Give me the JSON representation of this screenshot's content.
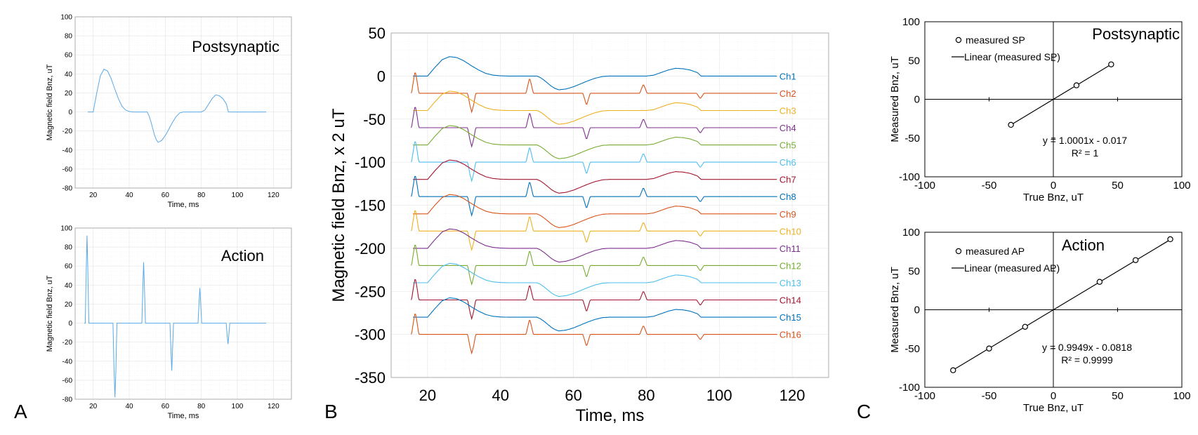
{
  "panel_letters": {
    "a": "A",
    "b": "B",
    "c": "C"
  },
  "chart_data": [
    {
      "id": "A1",
      "type": "line",
      "title": "Postsynaptic",
      "xlabel": "Time, ms",
      "ylabel": "Magnetic field Bnz, uT",
      "xlim": [
        10,
        130
      ],
      "ylim": [
        -80,
        100
      ],
      "xticks": [
        20,
        40,
        60,
        80,
        100,
        120
      ],
      "yticks": [
        -80,
        -60,
        -40,
        -20,
        0,
        20,
        40,
        60,
        80,
        100
      ],
      "grid": true,
      "series": [
        {
          "name": "postsynaptic",
          "color": "#5aa9e6",
          "x": [
            17,
            20,
            22,
            24,
            26,
            28,
            30,
            32,
            34,
            36,
            38,
            40,
            42,
            44,
            46,
            48,
            50,
            51,
            52,
            53,
            54,
            55,
            56,
            57,
            58,
            60,
            62,
            64,
            66,
            68,
            70,
            72,
            74,
            76,
            78,
            80,
            82,
            84,
            86,
            88,
            90,
            92,
            94,
            95,
            100,
            110,
            116
          ],
          "y": [
            0,
            0,
            20,
            38,
            45,
            43,
            35,
            24,
            14,
            6,
            2,
            0.5,
            0,
            0,
            0,
            0,
            0,
            -4,
            -10,
            -17,
            -24,
            -29,
            -32,
            -31,
            -30,
            -25,
            -18,
            -11,
            -5,
            -1,
            0,
            0,
            0,
            0,
            0,
            0,
            2,
            8,
            14,
            18,
            17,
            14,
            8,
            0,
            0,
            0,
            0
          ]
        }
      ]
    },
    {
      "id": "A2",
      "type": "line",
      "title": "Action",
      "xlabel": "Time, ms",
      "ylabel": "Magnetic field Bnz, uT",
      "xlim": [
        10,
        130
      ],
      "ylim": [
        -80,
        100
      ],
      "xticks": [
        20,
        40,
        60,
        80,
        100,
        120
      ],
      "yticks": [
        -80,
        -60,
        -40,
        -20,
        0,
        20,
        40,
        60,
        80,
        100
      ],
      "grid": true,
      "series": [
        {
          "name": "action",
          "color": "#5aa9e6",
          "x": [
            15,
            15.6,
            16.2,
            16.6,
            17.0,
            17.6,
            18.2,
            31.0,
            31.6,
            32.1,
            32.6,
            33.2,
            47.0,
            47.6,
            48.0,
            48.4,
            49.0,
            62.6,
            63.2,
            63.6,
            64.0,
            64.6,
            78.2,
            78.8,
            79.2,
            79.6,
            80.2,
            93.8,
            94.4,
            94.8,
            95.2,
            95.8,
            116
          ],
          "y": [
            0,
            0,
            60,
            92,
            60,
            0,
            0,
            0,
            -50,
            -78,
            -50,
            0,
            0,
            40,
            64,
            40,
            0,
            0,
            -30,
            -50,
            -30,
            0,
            0,
            24,
            37,
            24,
            0,
            0,
            -14,
            -22,
            -14,
            0,
            0
          ]
        }
      ]
    },
    {
      "id": "B",
      "type": "line",
      "title": "",
      "xlabel": "Time, ms",
      "ylabel": "Magnetic field Bnz, x 2 uT",
      "xlim": [
        10,
        130
      ],
      "ylim": [
        -350,
        50
      ],
      "xticks": [
        20,
        40,
        60,
        80,
        100,
        120
      ],
      "yticks": [
        -350,
        -300,
        -250,
        -200,
        -150,
        -100,
        -50,
        0,
        50
      ],
      "grid": true,
      "channel_spacing": -20,
      "series": [
        {
          "name": "Ch1",
          "color": "#0072bd",
          "kind": "postsynaptic",
          "offset": 0
        },
        {
          "name": "Ch2",
          "color": "#d95319",
          "kind": "action",
          "offset": -20
        },
        {
          "name": "Ch3",
          "color": "#edb120",
          "kind": "postsynaptic",
          "offset": -40
        },
        {
          "name": "Ch4",
          "color": "#7e2f8e",
          "kind": "action",
          "offset": -60
        },
        {
          "name": "Ch5",
          "color": "#77ac30",
          "kind": "postsynaptic",
          "offset": -80
        },
        {
          "name": "Ch6",
          "color": "#4dbeee",
          "kind": "action",
          "offset": -100
        },
        {
          "name": "Ch7",
          "color": "#a2142f",
          "kind": "postsynaptic",
          "offset": -120
        },
        {
          "name": "Ch8",
          "color": "#0072bd",
          "kind": "action",
          "offset": -140
        },
        {
          "name": "Ch9",
          "color": "#d95319",
          "kind": "postsynaptic",
          "offset": -160
        },
        {
          "name": "Ch10",
          "color": "#edb120",
          "kind": "action",
          "offset": -180
        },
        {
          "name": "Ch11",
          "color": "#7e2f8e",
          "kind": "postsynaptic",
          "offset": -200
        },
        {
          "name": "Ch12",
          "color": "#77ac30",
          "kind": "action",
          "offset": -220
        },
        {
          "name": "Ch13",
          "color": "#4dbeee",
          "kind": "postsynaptic",
          "offset": -240
        },
        {
          "name": "Ch14",
          "color": "#a2142f",
          "kind": "action",
          "offset": -260
        },
        {
          "name": "Ch15",
          "color": "#0072bd",
          "kind": "postsynaptic",
          "offset": -280
        },
        {
          "name": "Ch16",
          "color": "#d95319",
          "kind": "action",
          "offset": -300
        }
      ]
    },
    {
      "id": "C1",
      "type": "scatter",
      "title": "Postsynaptic",
      "xlabel": "True Bnz, uT",
      "ylabel": "Measured Bnz, uT",
      "xlim": [
        -100,
        100
      ],
      "ylim": [
        -100,
        100
      ],
      "xticks": [
        -100,
        -50,
        0,
        50,
        100
      ],
      "yticks": [
        -100,
        -50,
        0,
        50,
        100
      ],
      "grid": false,
      "legend": [
        "measured SP",
        "Linear (measured SP)"
      ],
      "equation": "y = 1.0001x - 0.017",
      "r2": "R² = 1",
      "points": {
        "x": [
          -33,
          18,
          45
        ],
        "y": [
          -33,
          18,
          45
        ]
      },
      "fit": {
        "slope": 1.0001,
        "intercept": -0.017,
        "x": [
          -33,
          45
        ]
      }
    },
    {
      "id": "C2",
      "type": "scatter",
      "title": "Action",
      "xlabel": "True Bnz, uT",
      "ylabel": "Measured Bnz, uT",
      "xlim": [
        -100,
        100
      ],
      "ylim": [
        -100,
        100
      ],
      "xticks": [
        -100,
        -50,
        0,
        50,
        100
      ],
      "yticks": [
        -100,
        -50,
        0,
        50,
        100
      ],
      "grid": false,
      "legend": [
        "measured AP",
        "Linear (measured AP)"
      ],
      "equation": "y = 0.9949x - 0.0818",
      "r2": "R² = 0.9999",
      "points": {
        "x": [
          -78,
          -50,
          -22,
          36,
          64,
          91
        ],
        "y": [
          -78,
          -50,
          -22,
          36,
          64,
          91
        ]
      },
      "fit": {
        "slope": 0.9949,
        "intercept": -0.0818,
        "x": [
          -78,
          91
        ]
      }
    }
  ]
}
